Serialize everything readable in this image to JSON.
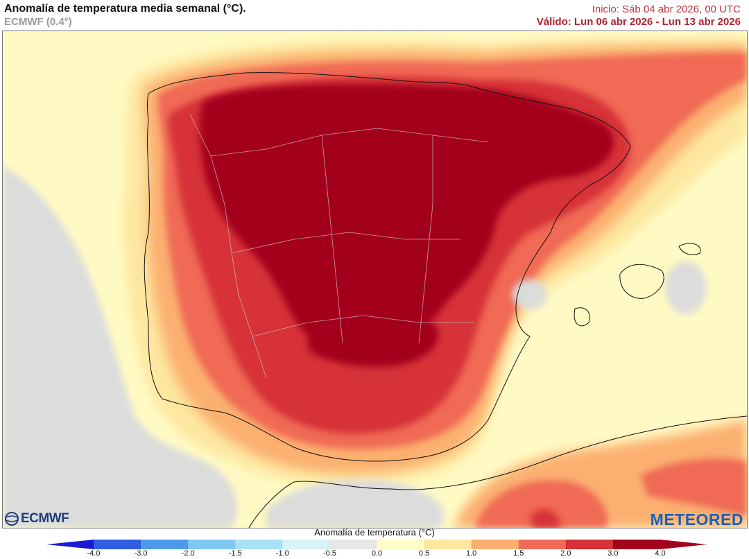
{
  "header": {
    "title": "Anomalía de temperatura media semanal (°C).",
    "subtitle": "ECMWF (0.4°)",
    "init": "Inicio: Sáb 04 abr 2026, 00 UTC",
    "valid": "Válido: Lun 06 abr 2026 - Lun 13 abr 2026"
  },
  "logos": {
    "ecmwf": "ECMWF",
    "meteored": "METEORED"
  },
  "legend": {
    "title": "Anomalía de temperatura (°C)",
    "ticks": [
      "-4.0",
      "-3.0",
      "-2.0",
      "-1.5",
      "-1.0",
      "-0.5",
      "0.0",
      "0.5",
      "1.0",
      "1.5",
      "2.0",
      "3.0",
      "4.0"
    ],
    "colors": [
      "#1a1ad6",
      "#2f5fe0",
      "#4d9ae8",
      "#7fc8f0",
      "#a8e2f6",
      "#d8f2fa",
      "#e6e6e6",
      "#fffdc8",
      "#fde7a0",
      "#fbb070",
      "#f06a55",
      "#d63038",
      "#a3021d"
    ]
  }
}
